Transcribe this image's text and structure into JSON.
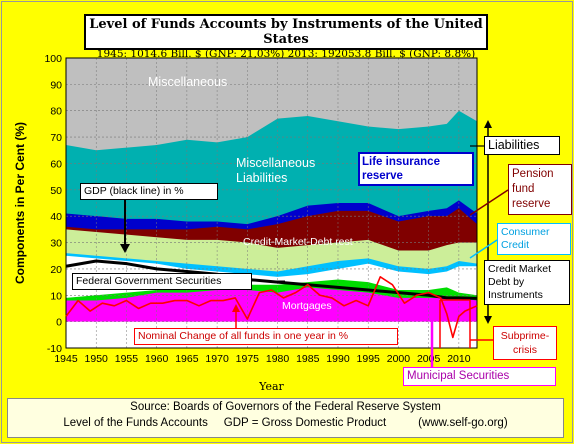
{
  "title": {
    "main": "Level of Funds Accounts by Instruments of the United States",
    "sub": "1945: 1014.6 Bill. $ (GNP: 21,03%)   2013: 192053.8  Bill. $ (GNP: 8.8%)"
  },
  "source": {
    "line1": "Source: Boards of Governors of the Federal Reserve System",
    "line2": "Level of the Funds Accounts     GDP = Gross Domestic Product          (www.self-go.org)"
  },
  "colors": {
    "background": "#ffff00",
    "plot_bg": "#a6a6a6",
    "miscellaneous": "#bfbfbf",
    "misc_liabilities": "#00b0b0",
    "life_insurance": "#0000cc",
    "pension_fund": "#800000",
    "consumer_credit": "#00c0ff",
    "credit_market_rest": "#ccee99",
    "federal_gov": "#ffffff",
    "mortgages": "#00dd00",
    "municipal": "#ff00ff",
    "gdp_line": "#000000",
    "nominal_change_line": "#ff0000"
  },
  "chart_data": {
    "type": "area",
    "title": "Level of Funds Accounts by Instruments of the United States",
    "xlabel": "Year",
    "ylabel": "Components in Per Cent  (%)",
    "xlim": [
      1945,
      2013
    ],
    "ylim": [
      -10,
      100
    ],
    "grid": true,
    "x_ticks": [
      1945,
      1950,
      1955,
      1960,
      1965,
      1970,
      1975,
      1980,
      1985,
      1990,
      1995,
      2000,
      2005,
      2010
    ],
    "y_ticks": [
      -10,
      0,
      10,
      20,
      30,
      40,
      50,
      60,
      70,
      80,
      90,
      100
    ],
    "boundary_years": [
      1945,
      1950,
      1955,
      1960,
      1965,
      1970,
      1975,
      1980,
      1985,
      1990,
      1995,
      2000,
      2005,
      2008,
      2010,
      2013
    ],
    "stacked_boundaries": [
      {
        "name": "Municipal Securities",
        "fill": "municipal",
        "values": [
          8,
          8,
          9,
          11,
          11,
          12,
          12,
          11,
          13,
          12,
          11,
          9,
          9,
          9,
          9,
          8
        ]
      },
      {
        "name": "Mortgages",
        "fill": "mortgages",
        "values": [
          9,
          10,
          11,
          12,
          13,
          13,
          14,
          14,
          15,
          16,
          15,
          12,
          12,
          13,
          11,
          10
        ]
      },
      {
        "name": "Federal Government Securities",
        "fill": "federal_gov",
        "values": [
          25,
          24,
          23,
          22,
          20,
          19,
          18,
          17,
          18,
          20,
          22,
          19,
          18,
          19,
          21,
          21
        ]
      },
      {
        "name": "Consumer Credit",
        "fill": "consumer_credit",
        "values": [
          26,
          25,
          24,
          23,
          22,
          21,
          20,
          19,
          21,
          23,
          24,
          21,
          20,
          21,
          23,
          22
        ]
      },
      {
        "name": "Credit-Market-Debt rest",
        "fill": "credit_market_rest",
        "values": [
          35,
          34,
          33,
          32,
          31,
          31,
          30,
          28,
          29,
          30,
          31,
          27,
          27,
          29,
          30,
          30
        ]
      },
      {
        "name": "Pension fund reserve",
        "fill": "pension_fund",
        "values": [
          36,
          35,
          35,
          35,
          35,
          36,
          35,
          37,
          40,
          42,
          42,
          38,
          40,
          40,
          43,
          37
        ]
      },
      {
        "name": "Life insurance reserve",
        "fill": "life_insurance",
        "values": [
          41,
          40,
          39,
          39,
          38,
          38,
          37,
          40,
          44,
          45,
          45,
          40,
          42,
          43,
          46,
          41
        ]
      },
      {
        "name": "Miscellaneous Liabilities",
        "fill": "misc_liabilities",
        "values": [
          67,
          65,
          66,
          67,
          69,
          68,
          70,
          77,
          78,
          76,
          74,
          73,
          74,
          75,
          80,
          76
        ]
      },
      {
        "name": "Miscellaneous",
        "fill": "miscellaneous",
        "values": [
          100,
          100,
          100,
          100,
          100,
          100,
          100,
          100,
          100,
          100,
          100,
          100,
          100,
          100,
          100,
          100
        ]
      }
    ],
    "lines": [
      {
        "name": "GDP (black line) in %",
        "color": "gdp_line",
        "x": [
          1945,
          1950,
          1955,
          1960,
          1965,
          1970,
          1975,
          1980,
          1985,
          1990,
          1995,
          2000,
          2005,
          2008,
          2010,
          2013
        ],
        "y": [
          21,
          23,
          22,
          20,
          19,
          18,
          16,
          15,
          14,
          13,
          12,
          11,
          10,
          9,
          9,
          8.8
        ]
      },
      {
        "name": "Nominal Change of all funds in one year in %",
        "color": "nominal_change_line",
        "x": [
          1945,
          1947,
          1949,
          1951,
          1953,
          1955,
          1957,
          1959,
          1961,
          1963,
          1965,
          1967,
          1969,
          1971,
          1973,
          1975,
          1977,
          1979,
          1981,
          1983,
          1985,
          1987,
          1989,
          1991,
          1993,
          1995,
          1997,
          1999,
          2001,
          2003,
          2005,
          2007,
          2008,
          2009,
          2010,
          2011,
          2013
        ],
        "y": [
          2,
          8,
          4,
          7,
          6,
          8,
          5,
          7,
          7,
          8,
          8,
          6,
          8,
          8,
          9,
          1,
          11,
          12,
          9,
          11,
          14,
          10,
          9,
          6,
          8,
          6,
          17,
          14,
          7,
          10,
          11,
          9,
          3,
          -6,
          2,
          4,
          6
        ]
      }
    ],
    "series_labels": {
      "miscellaneous": "Miscellaneous",
      "misc_liabilities": "Miscellaneous Liabilities",
      "life_insurance": "Life insurance reserve",
      "gdp": "GDP (black line) in %",
      "credit_market_rest": "Credit-Market-Debt rest",
      "federal_gov": "Federal Government Securities",
      "mortgages": "Mortgages",
      "nominal_change": "Nominal Change of all funds in one year in %"
    },
    "side_labels": {
      "liabilities": "Liabilities",
      "pension": "Pension fund reserve",
      "consumer": "Consumer Credit",
      "credit_market": "Credit Market Debt by Instruments",
      "subprime": "Subprime-crisis",
      "municipal": "Municipal Securities"
    }
  }
}
